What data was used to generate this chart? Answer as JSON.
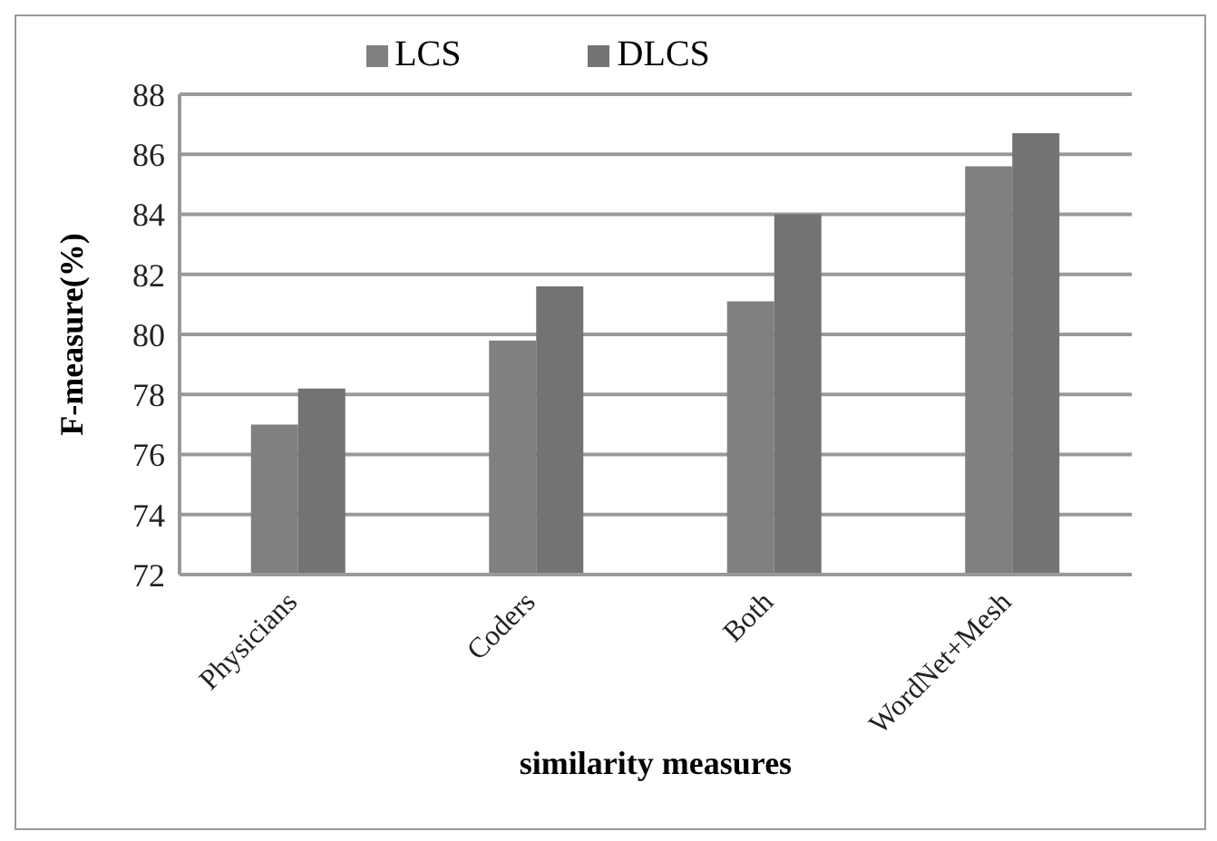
{
  "chart_data": {
    "type": "bar",
    "xlabel": "similarity measures",
    "ylabel": "F-measure(%)",
    "categories": [
      "Physicians",
      "Coders",
      "Both",
      "WordNet+Mesh"
    ],
    "series": [
      {
        "name": "LCS",
        "color": "#808080",
        "values": [
          77.0,
          79.8,
          81.1,
          85.6
        ]
      },
      {
        "name": "DLCS",
        "color": "#737373",
        "values": [
          78.2,
          81.6,
          84.0,
          86.7
        ]
      }
    ],
    "ylim": [
      72,
      88
    ],
    "yticks": [
      72,
      74,
      76,
      78,
      80,
      82,
      84,
      86,
      88
    ],
    "grid": "y",
    "legend": "top"
  }
}
